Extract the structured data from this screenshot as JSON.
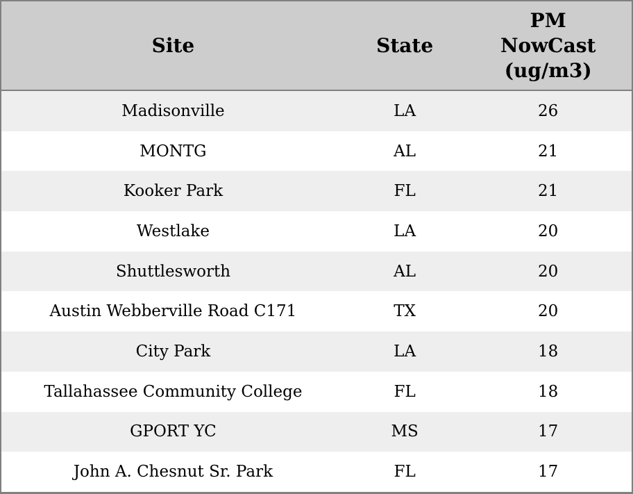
{
  "colors": {
    "header_bg": "#cdcdcd",
    "row_stripe_bg": "#eeeeee",
    "row_bg": "#ffffff",
    "border": "#808080",
    "text": "#000000"
  },
  "chart_data": {
    "type": "table",
    "title": "",
    "columns": [
      "Site",
      "State",
      "PM NowCast (ug/m3)"
    ],
    "pm_header_lines": [
      "PM",
      "NowCast",
      "(ug/m3)"
    ],
    "rows": [
      {
        "site": "Madisonville",
        "state": "LA",
        "pm": "26"
      },
      {
        "site": "MONTG",
        "state": "AL",
        "pm": "21"
      },
      {
        "site": "Kooker Park",
        "state": "FL",
        "pm": "21"
      },
      {
        "site": "Westlake",
        "state": "LA",
        "pm": "20"
      },
      {
        "site": "Shuttlesworth",
        "state": "AL",
        "pm": "20"
      },
      {
        "site": "Austin Webberville Road C171",
        "state": "TX",
        "pm": "20"
      },
      {
        "site": "City Park",
        "state": "LA",
        "pm": "18"
      },
      {
        "site": "Tallahassee Community College",
        "state": "FL",
        "pm": "18"
      },
      {
        "site": "GPORT YC",
        "state": "MS",
        "pm": "17"
      },
      {
        "site": "John A. Chesnut Sr. Park",
        "state": "FL",
        "pm": "17"
      }
    ]
  }
}
